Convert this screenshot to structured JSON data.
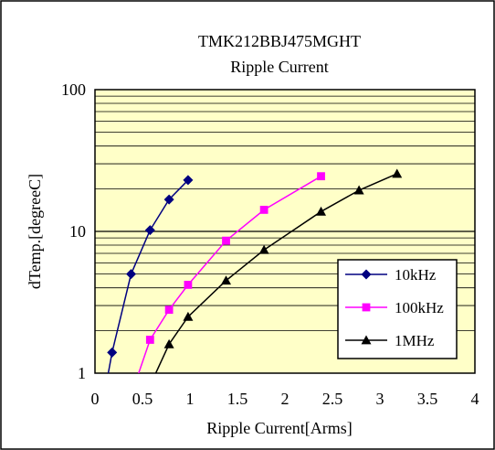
{
  "chart_data": {
    "type": "line",
    "title": "TMK212BBJ475MGHT",
    "subtitle": "Ripple Current",
    "xlabel": "Ripple Current[Arms]",
    "ylabel": "dTemp.[degreeC]",
    "xlim": [
      0,
      4
    ],
    "ylim": [
      1,
      100
    ],
    "yscale": "log",
    "grid": true,
    "legend_position": "bottom-right",
    "plot_background": "#ffffc8",
    "x_ticks": [
      "0",
      "0.5",
      "1",
      "1.5",
      "2",
      "2.5",
      "3",
      "3.5",
      "4"
    ],
    "y_ticks": [
      "1",
      "10",
      "100"
    ],
    "series": [
      {
        "name": "10kHz",
        "color": "#000080",
        "marker": "diamond",
        "x": [
          0.18,
          0.38,
          0.58,
          0.78,
          0.98
        ],
        "y": [
          1.4,
          5.0,
          10.2,
          16.8,
          23.0
        ]
      },
      {
        "name": "100kHz",
        "color": "#ff00ff",
        "marker": "square",
        "x": [
          0.58,
          0.78,
          0.98,
          1.38,
          1.78,
          2.38
        ],
        "y": [
          1.72,
          2.8,
          4.2,
          8.6,
          14.2,
          24.5
        ]
      },
      {
        "name": "1MHz",
        "color": "#000000",
        "marker": "triangle",
        "x": [
          0.78,
          0.98,
          1.38,
          1.78,
          2.38,
          2.78,
          3.18
        ],
        "y": [
          1.6,
          2.5,
          4.5,
          7.4,
          13.8,
          19.5,
          25.5
        ]
      }
    ],
    "lead_in": [
      {
        "x": [
          0.14,
          0.18
        ],
        "y": [
          1.0,
          1.4
        ]
      },
      {
        "x": [
          0.46,
          0.58
        ],
        "y": [
          1.0,
          1.72
        ]
      },
      {
        "x": [
          0.64,
          0.78
        ],
        "y": [
          1.0,
          1.6
        ]
      }
    ]
  }
}
